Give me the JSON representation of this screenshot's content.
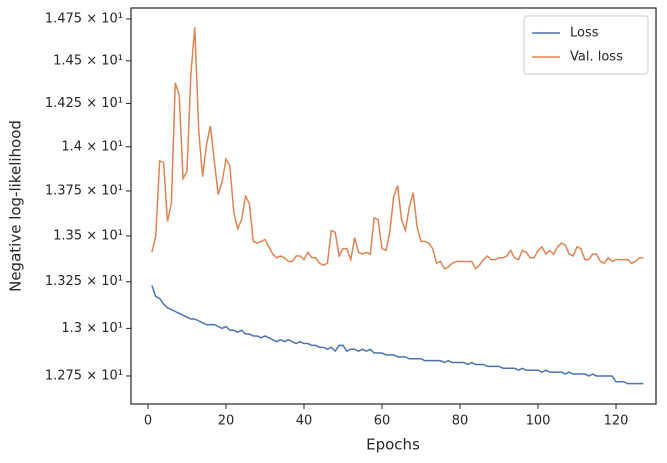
{
  "chart_data": {
    "type": "line",
    "x": [
      1,
      2,
      3,
      4,
      5,
      6,
      7,
      8,
      9,
      10,
      11,
      12,
      13,
      14,
      15,
      16,
      17,
      18,
      19,
      20,
      21,
      22,
      23,
      24,
      25,
      26,
      27,
      28,
      29,
      30,
      31,
      32,
      33,
      34,
      35,
      36,
      37,
      38,
      39,
      40,
      41,
      42,
      43,
      44,
      45,
      46,
      47,
      48,
      49,
      50,
      51,
      52,
      53,
      54,
      55,
      56,
      57,
      58,
      59,
      60,
      61,
      62,
      63,
      64,
      65,
      66,
      67,
      68,
      69,
      70,
      71,
      72,
      73,
      74,
      75,
      76,
      77,
      78,
      79,
      80,
      81,
      82,
      83,
      84,
      85,
      86,
      87,
      88,
      89,
      90,
      91,
      92,
      93,
      94,
      95,
      96,
      97,
      98,
      99,
      100,
      101,
      102,
      103,
      104,
      105,
      106,
      107,
      108,
      109,
      110,
      111,
      112,
      113,
      114,
      115,
      116,
      117,
      118,
      119,
      120,
      121,
      122,
      123,
      124,
      125,
      126,
      127
    ],
    "series": [
      {
        "name": "Loss",
        "color": "#4c72b0",
        "values": [
          13.23,
          13.17,
          13.16,
          13.13,
          13.11,
          13.1,
          13.09,
          13.08,
          13.07,
          13.06,
          13.05,
          13.05,
          13.04,
          13.03,
          13.02,
          13.02,
          13.02,
          13.01,
          13.0,
          13.01,
          12.99,
          12.99,
          12.98,
          12.99,
          12.97,
          12.97,
          12.96,
          12.96,
          12.95,
          12.96,
          12.95,
          12.94,
          12.93,
          12.94,
          12.93,
          12.94,
          12.93,
          12.92,
          12.93,
          12.92,
          12.92,
          12.91,
          12.91,
          12.9,
          12.9,
          12.89,
          12.9,
          12.88,
          12.91,
          12.91,
          12.88,
          12.89,
          12.89,
          12.88,
          12.89,
          12.88,
          12.89,
          12.87,
          12.87,
          12.87,
          12.86,
          12.86,
          12.86,
          12.85,
          12.85,
          12.85,
          12.84,
          12.84,
          12.84,
          12.84,
          12.83,
          12.83,
          12.83,
          12.83,
          12.83,
          12.82,
          12.83,
          12.82,
          12.82,
          12.82,
          12.82,
          12.81,
          12.82,
          12.81,
          12.81,
          12.81,
          12.8,
          12.8,
          12.8,
          12.8,
          12.79,
          12.79,
          12.79,
          12.79,
          12.78,
          12.79,
          12.78,
          12.78,
          12.78,
          12.78,
          12.77,
          12.78,
          12.77,
          12.77,
          12.77,
          12.77,
          12.76,
          12.77,
          12.76,
          12.76,
          12.76,
          12.76,
          12.75,
          12.76,
          12.75,
          12.75,
          12.75,
          12.75,
          12.75,
          12.72,
          12.72,
          12.72,
          12.71,
          12.71,
          12.71,
          12.71,
          12.71
        ]
      },
      {
        "name": "Val. loss",
        "color": "#dd8452",
        "values": [
          13.41,
          13.5,
          13.92,
          13.91,
          13.58,
          13.68,
          14.37,
          14.3,
          13.82,
          13.86,
          14.42,
          14.7,
          14.1,
          13.83,
          14.01,
          14.12,
          13.92,
          13.73,
          13.8,
          13.93,
          13.89,
          13.63,
          13.54,
          13.59,
          13.72,
          13.68,
          13.47,
          13.46,
          13.47,
          13.48,
          13.44,
          13.4,
          13.38,
          13.39,
          13.38,
          13.36,
          13.36,
          13.39,
          13.39,
          13.37,
          13.41,
          13.38,
          13.38,
          13.35,
          13.34,
          13.35,
          13.53,
          13.52,
          13.39,
          13.43,
          13.43,
          13.37,
          13.49,
          13.41,
          13.4,
          13.41,
          13.4,
          13.6,
          13.59,
          13.43,
          13.42,
          13.52,
          13.72,
          13.78,
          13.59,
          13.53,
          13.66,
          13.74,
          13.55,
          13.47,
          13.47,
          13.46,
          13.43,
          13.35,
          13.36,
          13.32,
          13.33,
          13.35,
          13.36,
          13.36,
          13.36,
          13.36,
          13.36,
          13.32,
          13.34,
          13.37,
          13.39,
          13.37,
          13.37,
          13.38,
          13.38,
          13.39,
          13.42,
          13.38,
          13.37,
          13.42,
          13.41,
          13.38,
          13.38,
          13.42,
          13.44,
          13.4,
          13.42,
          13.4,
          13.44,
          13.46,
          13.45,
          13.4,
          13.39,
          13.44,
          13.43,
          13.37,
          13.37,
          13.4,
          13.4,
          13.36,
          13.35,
          13.38,
          13.36,
          13.37,
          13.37,
          13.37,
          13.37,
          13.35,
          13.36,
          13.38,
          13.38
        ]
      }
    ],
    "xlabel": "Epochs",
    "ylabel": "Negative log-likelihood",
    "xlim": [
      -4.35,
      130.25
    ],
    "xticks": [
      0,
      20,
      40,
      60,
      80,
      100,
      120
    ],
    "ylim": [
      12.605,
      14.816
    ],
    "yscale": "log",
    "yticks": [
      {
        "value": 12.75,
        "label": "1.275 × 10¹"
      },
      {
        "value": 13,
        "label": "1.3 × 10¹"
      },
      {
        "value": 13.25,
        "label": "1.325 × 10¹"
      },
      {
        "value": 13.5,
        "label": "1.35 × 10¹"
      },
      {
        "value": 13.75,
        "label": "1.375 × 10¹"
      },
      {
        "value": 14,
        "label": "1.4 × 10¹"
      },
      {
        "value": 14.25,
        "label": "1.425 × 10¹"
      },
      {
        "value": 14.5,
        "label": "1.45 × 10¹"
      },
      {
        "value": 14.75,
        "label": "1.475 × 10¹"
      }
    ],
    "legend": "upper right"
  }
}
